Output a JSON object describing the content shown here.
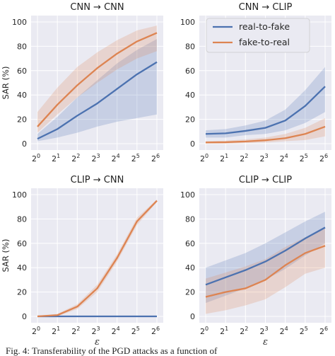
{
  "chart_data": [
    {
      "type": "line",
      "title": "CNN → CNN",
      "ylabel": "SAR (%)",
      "xlabel": "",
      "x_base": "2",
      "x_exponents": [
        0,
        1,
        2,
        3,
        4,
        5,
        6
      ],
      "ylim": [
        0,
        100
      ],
      "yticks": [
        0,
        20,
        40,
        60,
        80,
        100
      ],
      "series": [
        {
          "name": "real-to-fake",
          "values": [
            4,
            12,
            23,
            33,
            45,
            57,
            67
          ],
          "band_low": [
            2,
            5,
            9,
            14,
            18,
            21,
            24
          ],
          "band_high": [
            8,
            22,
            38,
            52,
            66,
            77,
            86
          ]
        },
        {
          "name": "fake-to-real",
          "values": [
            14,
            32,
            48,
            62,
            74,
            84,
            91
          ],
          "band_low": [
            9,
            24,
            38,
            50,
            61,
            70,
            76
          ],
          "band_high": [
            26,
            46,
            63,
            75,
            85,
            93,
            97
          ]
        }
      ]
    },
    {
      "type": "line",
      "title": "CNN → CLIP",
      "ylabel": "",
      "xlabel": "",
      "x_base": "2",
      "x_exponents": [
        0,
        1,
        2,
        3,
        4,
        5,
        6
      ],
      "ylim": [
        0,
        100
      ],
      "yticks": [
        0,
        20,
        40,
        60,
        80,
        100
      ],
      "legend": {
        "placement": "top-right"
      },
      "series": [
        {
          "name": "real-to-fake",
          "values": [
            8,
            8.5,
            10.5,
            13,
            19,
            31,
            47
          ],
          "band_low": [
            5,
            5,
            7,
            8,
            11,
            17,
            26
          ],
          "band_high": [
            11,
            12,
            15,
            19,
            28,
            44,
            63
          ]
        },
        {
          "name": "fake-to-real",
          "values": [
            1,
            1.2,
            1.8,
            2.8,
            4.5,
            8,
            14
          ],
          "band_low": [
            0,
            0,
            0.5,
            1,
            2,
            3,
            6
          ],
          "band_high": [
            2,
            2.5,
            3.5,
            5,
            8,
            13,
            21
          ]
        }
      ]
    },
    {
      "type": "line",
      "title": "CLIP → CNN",
      "ylabel": "SAR (%)",
      "xlabel": "ε",
      "x_base": "2",
      "x_exponents": [
        0,
        1,
        2,
        3,
        4,
        5,
        6
      ],
      "ylim": [
        0,
        100
      ],
      "yticks": [
        0,
        20,
        40,
        60,
        80,
        100
      ],
      "series": [
        {
          "name": "real-to-fake",
          "values": [
            0,
            0,
            0,
            0,
            0,
            0,
            0
          ],
          "band_low": [
            0,
            0,
            0,
            0,
            0,
            0,
            0
          ],
          "band_high": [
            0,
            0,
            0,
            0,
            0,
            0,
            0
          ]
        },
        {
          "name": "fake-to-real",
          "values": [
            0,
            1,
            8,
            23,
            48,
            78,
            95
          ],
          "band_low": [
            0,
            0,
            6,
            20,
            45,
            75,
            94
          ],
          "band_high": [
            0.5,
            2,
            10,
            26,
            51,
            81,
            96
          ]
        }
      ]
    },
    {
      "type": "line",
      "title": "CLIP → CLIP",
      "ylabel": "",
      "xlabel": "ε",
      "x_base": "2",
      "x_exponents": [
        0,
        1,
        2,
        3,
        4,
        5,
        6
      ],
      "ylim": [
        0,
        100
      ],
      "yticks": [
        0,
        20,
        40,
        60,
        80,
        100
      ],
      "series": [
        {
          "name": "real-to-fake",
          "values": [
            26,
            32,
            38,
            45,
            54,
            64,
            73
          ],
          "band_low": [
            11,
            17,
            23,
            30,
            39,
            50,
            60
          ],
          "band_high": [
            40,
            46,
            52,
            60,
            69,
            78,
            86
          ]
        },
        {
          "name": "fake-to-real",
          "values": [
            16,
            20,
            23,
            30,
            42,
            52,
            58
          ],
          "band_low": [
            2,
            5,
            9,
            14,
            24,
            35,
            40
          ],
          "band_high": [
            31,
            36,
            41,
            47,
            57,
            65,
            72
          ]
        }
      ]
    }
  ],
  "colors": {
    "real-to-fake": "#4c72b0",
    "fake-to-real": "#dd8452",
    "axes_bg": "#eaeaf2"
  },
  "caption": "Fig. 4: Transferability of the PGD attacks as a function of"
}
